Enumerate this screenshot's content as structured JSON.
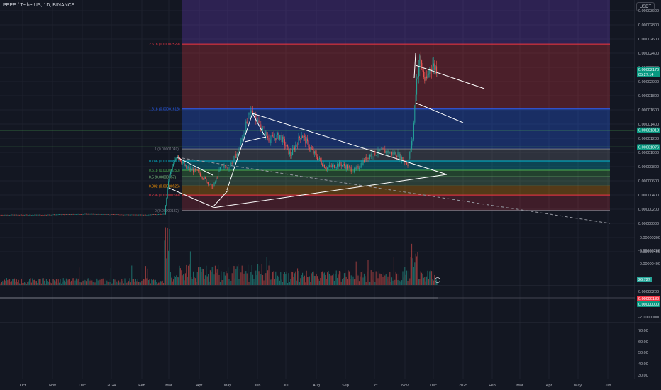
{
  "header": {
    "title": "PEPE / TetherUS, 1D, BINANCE",
    "currency_button": "USDT"
  },
  "colors": {
    "background": "#131722",
    "up": "#26a69a",
    "down": "#ef5350",
    "grid": "#1e222d",
    "drawing": "#ffffff"
  },
  "chart_data": [
    {
      "type": "candlestick",
      "title": "PEPE / TetherUS, 1D, BINANCE",
      "y_axis_ticks": [
        "0.00003000",
        "0.00002800",
        "0.00002600",
        "0.00002400",
        "0.00002200",
        "0.00002000",
        "0.00001800",
        "0.00001600",
        "0.00001400",
        "0.00001200",
        "0.00001000",
        "0.00000800",
        "0.00000600",
        "0.00000400",
        "0.00000200",
        "0.00000000",
        "-0.00000200",
        "-0.00000400"
      ],
      "x_axis_ticks": [
        "Oct",
        "Nov",
        "Dec",
        "2024",
        "Feb",
        "Mar",
        "Apr",
        "May",
        "Jun",
        "Jul",
        "Aug",
        "Sep",
        "Oct",
        "Nov",
        "Dec",
        "2025",
        "Feb",
        "Mar",
        "Apr",
        "May",
        "Jun"
      ],
      "price_markers": [
        {
          "label": "0.00002170",
          "sub": "05:27:14",
          "color": "#089981"
        },
        {
          "label": "0.00001313",
          "color": "#089981"
        },
        {
          "label": "0.00001076",
          "color": "#089981"
        }
      ],
      "fibonacci_levels": [
        {
          "label": "2.618 (0.00002529)",
          "ratio": "2.618",
          "value": 2.529e-05,
          "color": "#f23645"
        },
        {
          "label": "1.618 (0.00001613)",
          "ratio": "1.618",
          "value": 1.613e-05,
          "color": "#2962ff"
        },
        {
          "label": "1 (0.00001049)",
          "ratio": "1",
          "value": 1.049e-05,
          "color": "#787b86"
        },
        {
          "label": "0.786 (0.00000880)",
          "ratio": "0.786",
          "value": 8.8e-06,
          "color": "#00bcd4"
        },
        {
          "label": "0.618 (0.00000750)",
          "ratio": "0.618",
          "value": 7.5e-06,
          "color": "#4caf50"
        },
        {
          "label": "0.5 (0.00000657)",
          "ratio": "0.5",
          "value": 6.57e-06,
          "color": "#81c784"
        },
        {
          "label": "0.382 (0.00000526)",
          "ratio": "0.382",
          "value": 5.26e-06,
          "color": "#ff9800"
        },
        {
          "label": "0.236 (0.00000399)",
          "ratio": "0.236",
          "value": 3.99e-06,
          "color": "#f23645"
        },
        {
          "label": "0 (0.00000182)",
          "ratio": "0",
          "value": 1.82e-06,
          "color": "#787b86"
        }
      ],
      "horizontal_lines": [
        1.313e-05,
        1.076e-05
      ]
    },
    {
      "type": "bar",
      "title": "Volume",
      "value_label": "26.727"
    },
    {
      "type": "line",
      "title": "Indicator",
      "y_axis_ticks": [
        "0.00000200",
        "-2.00000000"
      ],
      "value_labels": [
        {
          "label": "0.00000180",
          "color": "#f23645"
        },
        {
          "label": "0.00000000",
          "color": "#089981"
        }
      ]
    },
    {
      "type": "line",
      "title": "RSI",
      "y_axis_ticks": [
        "70.00",
        "60.00",
        "50.00",
        "40.00",
        "30.00"
      ]
    }
  ]
}
